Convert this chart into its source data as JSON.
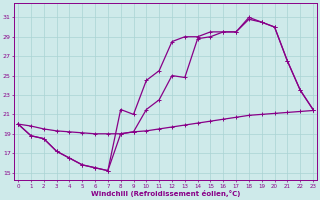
{
  "xlabel": "Windchill (Refroidissement éolien,°C)",
  "bg_color": "#ceeaea",
  "grid_color": "#aad4d4",
  "line_color": "#880088",
  "x_ticks": [
    0,
    1,
    2,
    3,
    4,
    5,
    6,
    7,
    8,
    9,
    10,
    11,
    12,
    13,
    14,
    15,
    16,
    17,
    18,
    19,
    20,
    21,
    22,
    23
  ],
  "y_ticks": [
    15,
    17,
    19,
    21,
    23,
    25,
    27,
    29,
    31
  ],
  "xlim": [
    -0.3,
    23.3
  ],
  "ylim": [
    14.2,
    32.5
  ],
  "line1_x": [
    0,
    1,
    2,
    3,
    4,
    5,
    6,
    7,
    8,
    9,
    10,
    11,
    12,
    13,
    14,
    15,
    16,
    17,
    18,
    19,
    20,
    21,
    22,
    23
  ],
  "line1_y": [
    20,
    18.8,
    18.5,
    17.2,
    16.5,
    15.8,
    15.5,
    15.2,
    19.0,
    19.2,
    21.5,
    22.5,
    25.0,
    24.8,
    28.8,
    29.0,
    29.5,
    29.5,
    31.0,
    30.5,
    30.0,
    26.5,
    23.5,
    21.5
  ],
  "line2_x": [
    0,
    1,
    2,
    3,
    4,
    5,
    6,
    7,
    8,
    9,
    10,
    11,
    12,
    13,
    14,
    15,
    16,
    17,
    18,
    19,
    20,
    21,
    22,
    23
  ],
  "line2_y": [
    20.0,
    19.8,
    19.5,
    19.3,
    19.2,
    19.1,
    19.0,
    19.0,
    19.0,
    19.2,
    19.3,
    19.5,
    19.7,
    19.9,
    20.1,
    20.3,
    20.5,
    20.7,
    20.9,
    21.0,
    21.1,
    21.2,
    21.3,
    21.4
  ],
  "line3_x": [
    0,
    1,
    2,
    3,
    4,
    5,
    6,
    7,
    8,
    9,
    10,
    11,
    12,
    13,
    14,
    15,
    16,
    17,
    18,
    19,
    20,
    21,
    22,
    23
  ],
  "line3_y": [
    20,
    18.8,
    18.5,
    17.2,
    16.5,
    15.8,
    15.5,
    15.2,
    21.5,
    21.0,
    24.5,
    25.5,
    28.5,
    29.0,
    29.0,
    29.5,
    29.5,
    29.5,
    30.8,
    30.5,
    30.0,
    26.5,
    23.5,
    21.5
  ]
}
